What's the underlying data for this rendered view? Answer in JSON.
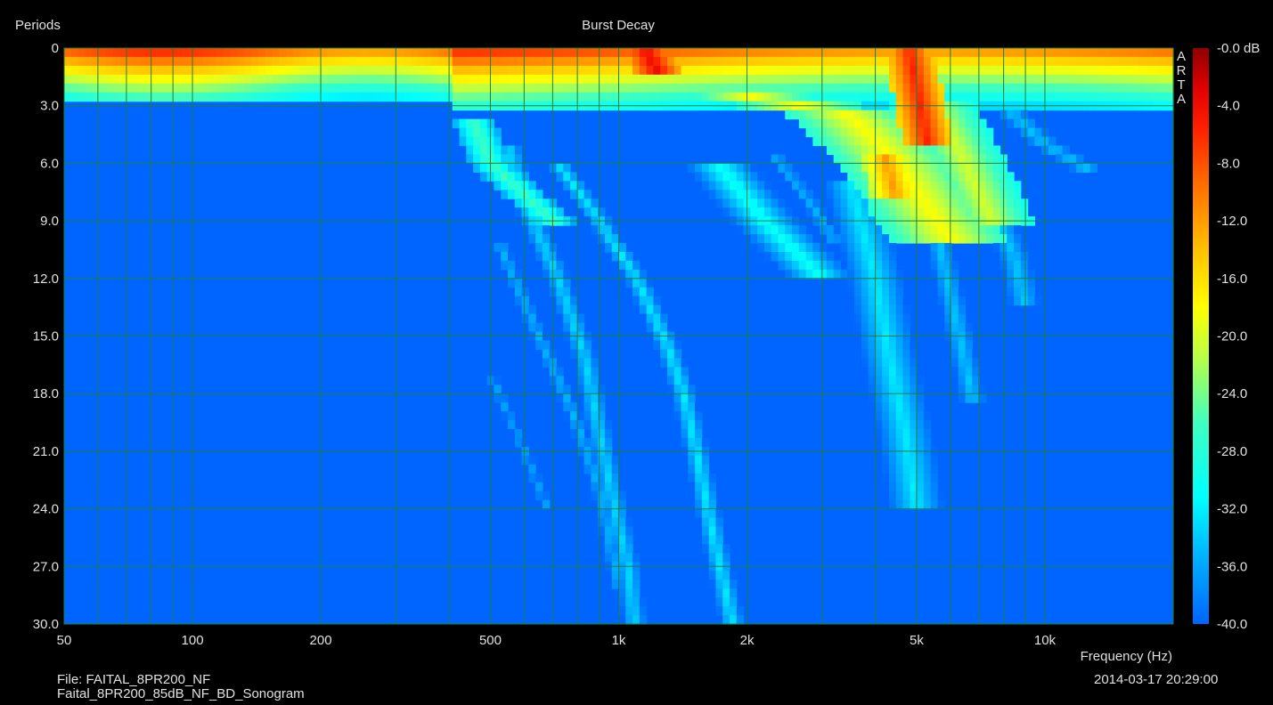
{
  "chart_data": {
    "type": "heatmap",
    "title": "Burst Decay",
    "xlabel": "Frequency (Hz)",
    "ylabel": "Periods",
    "x_scale": "log",
    "xlim": [
      50,
      20000
    ],
    "ylim": [
      0,
      30
    ],
    "y_inverted": true,
    "x_ticks": [
      {
        "v": 50,
        "label": "50"
      },
      {
        "v": 100,
        "label": "100"
      },
      {
        "v": 200,
        "label": "200"
      },
      {
        "v": 500,
        "label": "500"
      },
      {
        "v": 1000,
        "label": "1k"
      },
      {
        "v": 2000,
        "label": "2k"
      },
      {
        "v": 5000,
        "label": "5k"
      },
      {
        "v": 10000,
        "label": "10k"
      }
    ],
    "y_ticks": [
      {
        "v": 0,
        "label": "0"
      },
      {
        "v": 3,
        "label": "3.0"
      },
      {
        "v": 6,
        "label": "6.0"
      },
      {
        "v": 9,
        "label": "9.0"
      },
      {
        "v": 12,
        "label": "12.0"
      },
      {
        "v": 15,
        "label": "15.0"
      },
      {
        "v": 18,
        "label": "18.0"
      },
      {
        "v": 21,
        "label": "21.0"
      },
      {
        "v": 24,
        "label": "24.0"
      },
      {
        "v": 27,
        "label": "27.0"
      },
      {
        "v": 30,
        "label": "30.0"
      }
    ],
    "grid": true,
    "colorbar": {
      "range_db": [
        -40,
        0
      ],
      "labels": [
        {
          "v": 0,
          "label": "-0.0 dB"
        },
        {
          "v": -4,
          "label": "-4.0"
        },
        {
          "v": -8,
          "label": "-8.0"
        },
        {
          "v": -12,
          "label": "-12.0"
        },
        {
          "v": -16,
          "label": "-16.0"
        },
        {
          "v": -20,
          "label": "-20.0"
        },
        {
          "v": -24,
          "label": "-24.0"
        },
        {
          "v": -28,
          "label": "-28.0"
        },
        {
          "v": -32,
          "label": "-32.0"
        },
        {
          "v": -36,
          "label": "-36.0"
        },
        {
          "v": -40,
          "label": "-40.0"
        }
      ]
    },
    "initial_decay": [
      {
        "x0": 50,
        "x1": 400,
        "t_end": 2.7
      },
      {
        "x0": 400,
        "x1": 20000,
        "t_end": 3.0
      }
    ],
    "ridges": [
      {
        "db": -4,
        "w": 0.06,
        "pts": [
          [
            1150,
            0
          ],
          [
            1250,
            1.5
          ]
        ]
      },
      {
        "db": -6,
        "w": 0.06,
        "pts": [
          [
            4800,
            0
          ],
          [
            5200,
            4.0
          ],
          [
            5300,
            5.0
          ]
        ]
      },
      {
        "db": -12,
        "w": 0.06,
        "pts": [
          [
            4200,
            5.5
          ],
          [
            4500,
            8.0
          ]
        ]
      },
      {
        "db": -18,
        "w": 0.14,
        "pts": [
          [
            2000,
            2.5
          ],
          [
            3500,
            3.5
          ],
          [
            4500,
            6.0
          ],
          [
            6000,
            10.0
          ]
        ]
      },
      {
        "db": -20,
        "w": 0.1,
        "pts": [
          [
            5500,
            3.0
          ],
          [
            6500,
            6.0
          ],
          [
            7500,
            9.0
          ]
        ]
      },
      {
        "db": -26,
        "w": 0.05,
        "pts": [
          [
            450,
            3.5
          ],
          [
            500,
            6.0
          ],
          [
            700,
            9.0
          ]
        ]
      },
      {
        "db": -30,
        "w": 0.08,
        "pts": [
          [
            1700,
            6.0
          ],
          [
            2200,
            9.0
          ],
          [
            3000,
            12.0
          ]
        ]
      },
      {
        "db": -33,
        "w": 0.04,
        "pts": [
          [
            550,
            5.0
          ],
          [
            600,
            8.0
          ],
          [
            720,
            12.0
          ],
          [
            830,
            16.0
          ],
          [
            900,
            20.0
          ],
          [
            980,
            24.0
          ],
          [
            1050,
            27.0
          ],
          [
            1090,
            30.0
          ]
        ]
      },
      {
        "db": -32,
        "w": 0.035,
        "pts": [
          [
            720,
            6.0
          ],
          [
            900,
            9.0
          ],
          [
            1100,
            12.0
          ],
          [
            1300,
            15.5
          ],
          [
            1420,
            18.0
          ],
          [
            1520,
            21.0
          ],
          [
            1650,
            25.0
          ],
          [
            1850,
            30.0
          ]
        ]
      },
      {
        "db": -35,
        "w": 0.035,
        "pts": [
          [
            520,
            10.0
          ],
          [
            620,
            14.0
          ],
          [
            780,
            19.0
          ],
          [
            900,
            23.0
          ],
          [
            1000,
            28.0
          ]
        ]
      },
      {
        "db": -36,
        "w": 0.03,
        "pts": [
          [
            500,
            17.0
          ],
          [
            600,
            21.0
          ],
          [
            680,
            24.0
          ]
        ]
      },
      {
        "db": -32,
        "w": 0.08,
        "pts": [
          [
            3500,
            7.0
          ],
          [
            4000,
            12.0
          ],
          [
            4300,
            16.0
          ],
          [
            4700,
            20.0
          ],
          [
            5000,
            24.0
          ]
        ]
      },
      {
        "db": -34,
        "w": 0.05,
        "pts": [
          [
            5500,
            9.0
          ],
          [
            6300,
            15.0
          ],
          [
            6800,
            18.5
          ]
        ]
      },
      {
        "db": -34,
        "w": 0.06,
        "pts": [
          [
            7200,
            7.0
          ],
          [
            8500,
            11.0
          ],
          [
            9000,
            13.5
          ]
        ]
      },
      {
        "db": -34,
        "w": 0.06,
        "pts": [
          [
            8000,
            3.0
          ],
          [
            10000,
            5.0
          ],
          [
            13000,
            6.5
          ]
        ]
      },
      {
        "db": -35,
        "w": 0.04,
        "pts": [
          [
            2300,
            5.5
          ],
          [
            2800,
            8.0
          ],
          [
            3200,
            10.0
          ]
        ]
      }
    ]
  },
  "watermark": [
    "A",
    "R",
    "T",
    "A"
  ],
  "footer": {
    "file_line": "File: FAITAL_8PR200_NF",
    "name_line": "Faital_8PR200_85dB_NF_BD_Sonogram",
    "timestamp": "2014-03-17  20:29:00"
  }
}
